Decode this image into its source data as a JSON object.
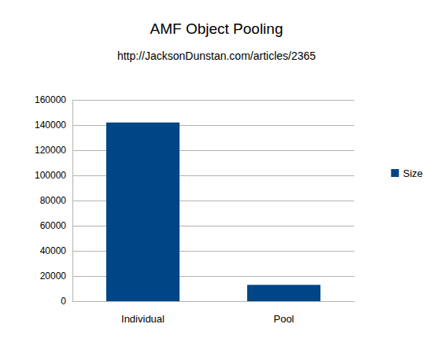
{
  "chart_data": {
    "type": "bar",
    "title": "AMF Object Pooling",
    "subtitle": "http://JacksonDunstan.com/articles/2365",
    "categories": [
      "Individual",
      "Pool"
    ],
    "series": [
      {
        "name": "Size",
        "color": "#004586",
        "values": [
          142000,
          13000
        ]
      }
    ],
    "ylim": [
      0,
      160000
    ],
    "yticks": [
      0,
      20000,
      40000,
      60000,
      80000,
      100000,
      120000,
      140000,
      160000
    ],
    "grid": true,
    "legend": "right"
  }
}
